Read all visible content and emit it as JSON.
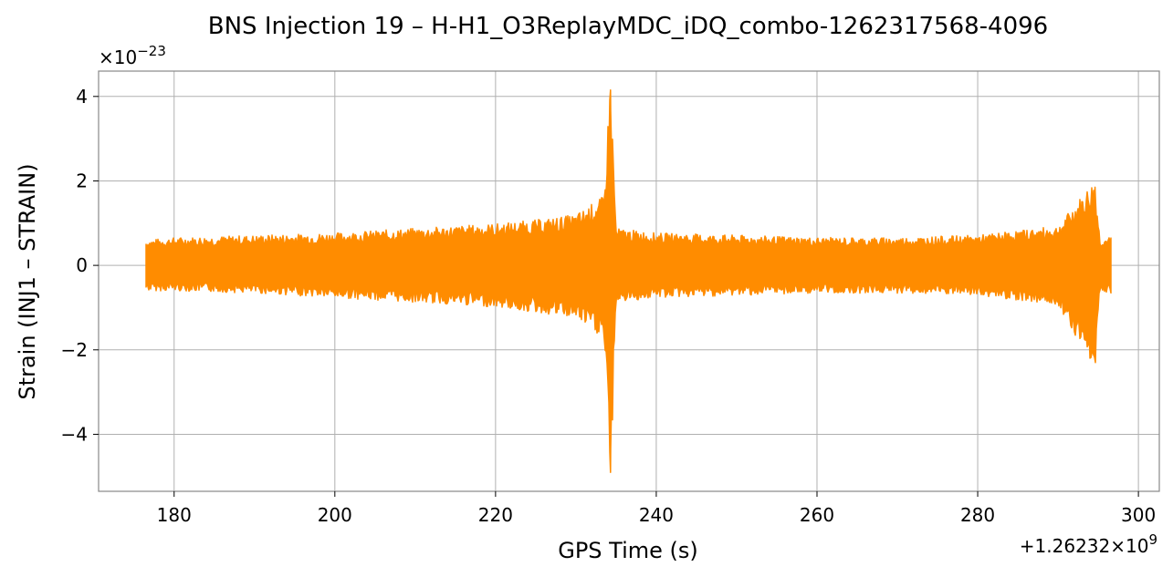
{
  "chart_data": {
    "type": "line",
    "title": "BNS Injection 19 – H-H1_O3ReplayMDC_iDQ_combo-1262317568-4096",
    "xlabel": "GPS Time (s)",
    "ylabel": "Strain (INJ1 – STRAIN)",
    "x_offset_label": "+1.26232×10",
    "x_offset_exponent": "9",
    "y_scale_label": "×10",
    "y_scale_exponent": "−23",
    "xlim": [
      170.6,
      302.6
    ],
    "ylim": [
      -5.35,
      4.6
    ],
    "x_ticks": [
      180,
      200,
      220,
      240,
      260,
      280,
      300
    ],
    "x_tick_labels": [
      "180",
      "200",
      "220",
      "240",
      "260",
      "280",
      "300"
    ],
    "y_ticks": [
      -4,
      -2,
      0,
      2,
      4
    ],
    "y_tick_labels": [
      "−4",
      "−2",
      "0",
      "2",
      "4"
    ],
    "grid": true,
    "line_color": "#ff8c00",
    "series": [
      {
        "x_start": 176.5,
        "x_end": 296.6,
        "envelope": [
          {
            "x": 176.5,
            "max": 0.55,
            "min": -0.55
          },
          {
            "x": 180,
            "max": 0.6,
            "min": -0.55
          },
          {
            "x": 190,
            "max": 0.65,
            "min": -0.6
          },
          {
            "x": 200,
            "max": 0.7,
            "min": -0.7
          },
          {
            "x": 210,
            "max": 0.8,
            "min": -0.8
          },
          {
            "x": 220,
            "max": 0.9,
            "min": -0.9
          },
          {
            "x": 226,
            "max": 1.0,
            "min": -1.05
          },
          {
            "x": 230,
            "max": 1.1,
            "min": -1.15
          },
          {
            "x": 233.5,
            "max": 1.5,
            "min": -1.6
          },
          {
            "x": 234.3,
            "max": 4.15,
            "min": -4.9
          },
          {
            "x": 235,
            "max": 0.8,
            "min": -0.8
          },
          {
            "x": 240,
            "max": 0.7,
            "min": -0.7
          },
          {
            "x": 250,
            "max": 0.65,
            "min": -0.65
          },
          {
            "x": 260,
            "max": 0.6,
            "min": -0.6
          },
          {
            "x": 270,
            "max": 0.6,
            "min": -0.6
          },
          {
            "x": 280,
            "max": 0.65,
            "min": -0.65
          },
          {
            "x": 290,
            "max": 0.85,
            "min": -0.85
          },
          {
            "x": 294.6,
            "max": 1.85,
            "min": -2.25
          },
          {
            "x": 295.2,
            "max": 0.6,
            "min": -0.55
          },
          {
            "x": 296.6,
            "max": 0.6,
            "min": -0.6
          }
        ]
      }
    ]
  }
}
